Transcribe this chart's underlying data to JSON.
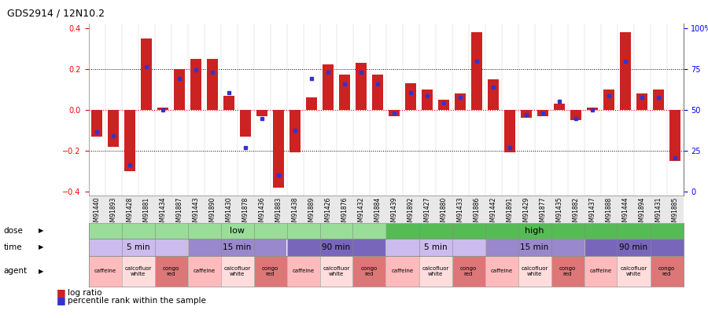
{
  "title": "GDS2914 / 12N10.2",
  "samples": [
    "GSM91440",
    "GSM91893",
    "GSM91428",
    "GSM91881",
    "GSM91434",
    "GSM91887",
    "GSM91443",
    "GSM91890",
    "GSM91430",
    "GSM91878",
    "GSM91436",
    "GSM91883",
    "GSM91438",
    "GSM91889",
    "GSM91426",
    "GSM91876",
    "GSM91432",
    "GSM91884",
    "GSM91439",
    "GSM91892",
    "GSM91427",
    "GSM91880",
    "GSM91433",
    "GSM91886",
    "GSM91442",
    "GSM91891",
    "GSM91429",
    "GSM91877",
    "GSM91435",
    "GSM91882",
    "GSM91437",
    "GSM91888",
    "GSM91444",
    "GSM91894",
    "GSM91431",
    "GSM91885"
  ],
  "log_ratio": [
    -0.13,
    -0.18,
    -0.3,
    0.35,
    0.01,
    0.2,
    0.25,
    0.25,
    0.07,
    -0.13,
    -0.03,
    -0.38,
    -0.21,
    0.06,
    0.22,
    0.17,
    0.23,
    0.17,
    -0.03,
    0.13,
    0.1,
    0.05,
    0.08,
    0.38,
    0.15,
    -0.21,
    -0.04,
    -0.03,
    0.03,
    -0.05,
    0.01,
    0.1,
    0.38,
    0.08,
    0.1,
    -0.25
  ],
  "percentile": [
    37,
    35,
    18,
    75,
    50,
    68,
    73,
    72,
    60,
    28,
    45,
    12,
    38,
    68,
    72,
    65,
    72,
    65,
    48,
    60,
    58,
    54,
    57,
    78,
    63,
    28,
    47,
    48,
    55,
    45,
    50,
    58,
    78,
    57,
    57,
    22
  ],
  "ylim": [
    -0.42,
    0.42
  ],
  "yticks": [
    -0.4,
    -0.2,
    0.0,
    0.2,
    0.4
  ],
  "ytick_right": [
    "0",
    "25",
    "50",
    "75",
    "100%"
  ],
  "bar_color": "#cc2222",
  "dot_color": "#3333cc",
  "dose_low_color": "#99dd99",
  "dose_high_color": "#55bb55",
  "time_5_color": "#ccbbee",
  "time_15_color": "#9988cc",
  "time_90_color": "#7766bb",
  "agent_caffeine_color": "#ffbbbb",
  "agent_calcofluor_color": "#ffdddd",
  "agent_congo_color": "#dd7777",
  "dose_groups": [
    {
      "label": "low",
      "start": 0,
      "end": 18
    },
    {
      "label": "high",
      "start": 18,
      "end": 36
    }
  ],
  "time_groups": [
    {
      "label": "5 min",
      "start": 0,
      "end": 6
    },
    {
      "label": "15 min",
      "start": 6,
      "end": 12
    },
    {
      "label": "90 min",
      "start": 12,
      "end": 18
    },
    {
      "label": "5 min",
      "start": 18,
      "end": 24
    },
    {
      "label": "15 min",
      "start": 24,
      "end": 30
    },
    {
      "label": "90 min",
      "start": 30,
      "end": 36
    }
  ],
  "agent_groups": [
    {
      "label": "caffeine",
      "start": 0,
      "end": 2
    },
    {
      "label": "calcofluor\nwhite",
      "start": 2,
      "end": 4
    },
    {
      "label": "congo\nred",
      "start": 4,
      "end": 6
    },
    {
      "label": "caffeine",
      "start": 6,
      "end": 8
    },
    {
      "label": "calcofluor\nwhite",
      "start": 8,
      "end": 10
    },
    {
      "label": "congo\nred",
      "start": 10,
      "end": 12
    },
    {
      "label": "caffeine",
      "start": 12,
      "end": 14
    },
    {
      "label": "calcofluor\nwhite",
      "start": 14,
      "end": 16
    },
    {
      "label": "congo\nred",
      "start": 16,
      "end": 18
    },
    {
      "label": "caffeine",
      "start": 18,
      "end": 20
    },
    {
      "label": "calcofluor\nwhite",
      "start": 20,
      "end": 22
    },
    {
      "label": "congo\nred",
      "start": 22,
      "end": 24
    },
    {
      "label": "caffeine",
      "start": 24,
      "end": 26
    },
    {
      "label": "calcofluor\nwhite",
      "start": 26,
      "end": 28
    },
    {
      "label": "congo\nred",
      "start": 28,
      "end": 30
    },
    {
      "label": "caffeine",
      "start": 30,
      "end": 32
    },
    {
      "label": "calcofluor\nwhite",
      "start": 32,
      "end": 34
    },
    {
      "label": "congo\nred",
      "start": 34,
      "end": 36
    }
  ]
}
